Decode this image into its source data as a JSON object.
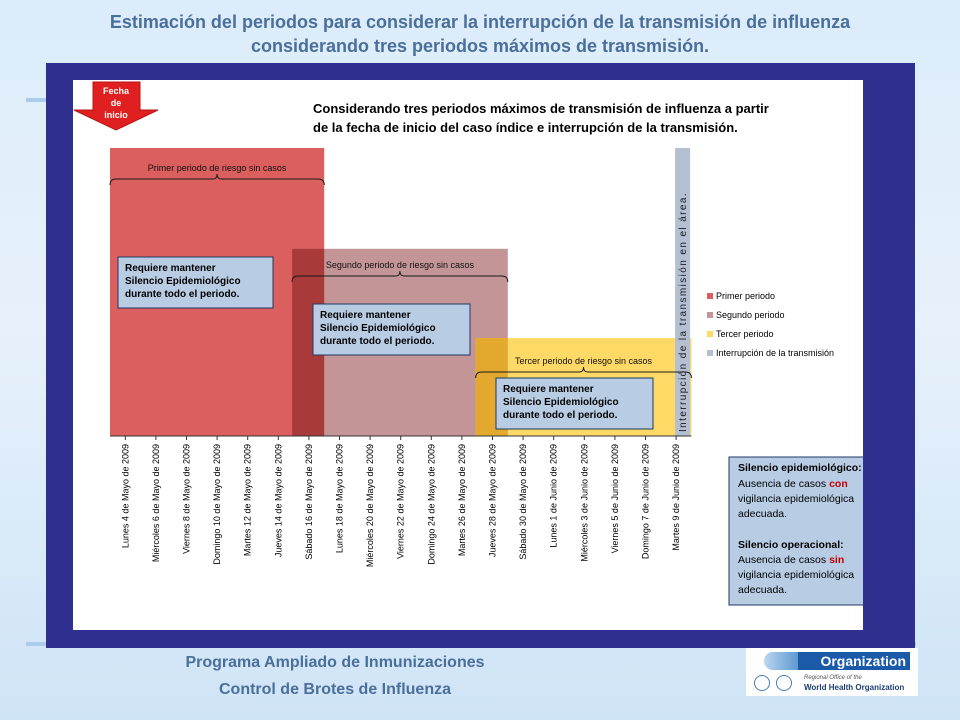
{
  "slide": {
    "title_line1": "Estimación del periodos para considerar la interrupción de la transmisión de influenza",
    "title_line2": "considerando tres periodos máximos de transmisión."
  },
  "footer": {
    "line1": "Programa Ampliado de Inmunizaciones",
    "line2": "Control de Brotes de Influenza"
  },
  "logo": {
    "banner": "Organization",
    "small_text": "Regional Office of the",
    "name": "World Health Organization"
  },
  "chart_data": {
    "type": "bar",
    "title_line1": "Considerando tres periodos máximos de transmisión de influenza a partir",
    "title_line2": "de la fecha de inicio del caso índice e interrupción de la transmisión.",
    "start_marker": {
      "line1": "Fecha",
      "line2": "de",
      "line3": "inicio"
    },
    "categories": [
      "Lunes 4 de Mayo de 2009",
      "Miércoles 6 de Mayo de 2009",
      "Viernes 8 de Mayo de 2009",
      "Domingo 10 de Mayo de 2009",
      "Martes 12 de Mayo de 2009",
      "Jueves 14 de Mayo de 2009",
      "Sábado 16 de Mayo de 2009",
      "Lunes 18 de Mayo de 2009",
      "Miércoles 20 de Mayo de 2009",
      "Viernes 22 de Mayo de 2009",
      "Domingo 24 de Mayo de 2009",
      "Martes 26 de Mayo de 2009",
      "Jueves 28 de Mayo de 2009",
      "Sábado 30 de Mayo de 2009",
      "Lunes 1 de Junio de 2009",
      "Miércoles 3 de Junio de 2009",
      "Viernes 5 de Junio de 2009",
      "Domingo 7 de Junio de 2009",
      "Martes 9 de Junio de 2009"
    ],
    "series": [
      {
        "name": "Primer periodo",
        "color": "#dc5f5f",
        "start": "Lunes 4 de Mayo de 2009",
        "end": "Sábado 16 de Mayo de 2009",
        "value": 100
      },
      {
        "name": "Segundo periodo",
        "color": "#c49596",
        "start": "Sábado 16 de Mayo de 2009",
        "end": "Jueves 28 de Mayo de 2009",
        "value": 65
      },
      {
        "name": "Tercer periodo",
        "color": "#ffd966",
        "start": "Jueves 28 de Mayo de 2009",
        "end": "Martes 9 de Junio de 2009",
        "value": 34
      },
      {
        "name": "Interrupción de la transmisión",
        "legend_label": "Interrupción de la transmisión",
        "color": "#b4bfd2",
        "start": "Martes 9 de Junio de 2009",
        "end": "Martes 9 de Junio de 2009",
        "value": 100
      }
    ],
    "overlaps": [
      {
        "between": [
          "Primer periodo",
          "Segundo periodo"
        ],
        "color": "#a83a3a"
      },
      {
        "between": [
          "Segundo periodo",
          "Tercer periodo"
        ],
        "color": "#e2a92e"
      }
    ],
    "period_labels": [
      "Primer  periodo de riesgo sin casos",
      "Segundo periodo de riesgo sin casos",
      "Tercer periodo de riesgo sin casos"
    ],
    "callout_text": {
      "line1": "Requiere mantener",
      "line2": "Silencio Epidemiológico",
      "line3": "durante todo el periodo."
    },
    "interruption_label": "Interrupción de la transmisión en el área.",
    "legend_labels": [
      "Primer periodo",
      "Segundo periodo",
      "Tercer periodo",
      "Interrupción de la transmisión"
    ],
    "definitions": {
      "epi_title": "Silencio epidemiológico:",
      "epi_line1_a": "Ausencia de casos ",
      "epi_line1_b": "con",
      "epi_line2": "vigilancia epidemiológica",
      "epi_line3": "adecuada.",
      "op_title": "Silencio operacional:",
      "op_line1_a": "Ausencia de casos ",
      "op_line1_b": "sin",
      "op_line2": "vigilancia epidemiológica",
      "op_line3": "adecuada."
    },
    "ylim": [
      0,
      100
    ],
    "legend_position": "right"
  }
}
